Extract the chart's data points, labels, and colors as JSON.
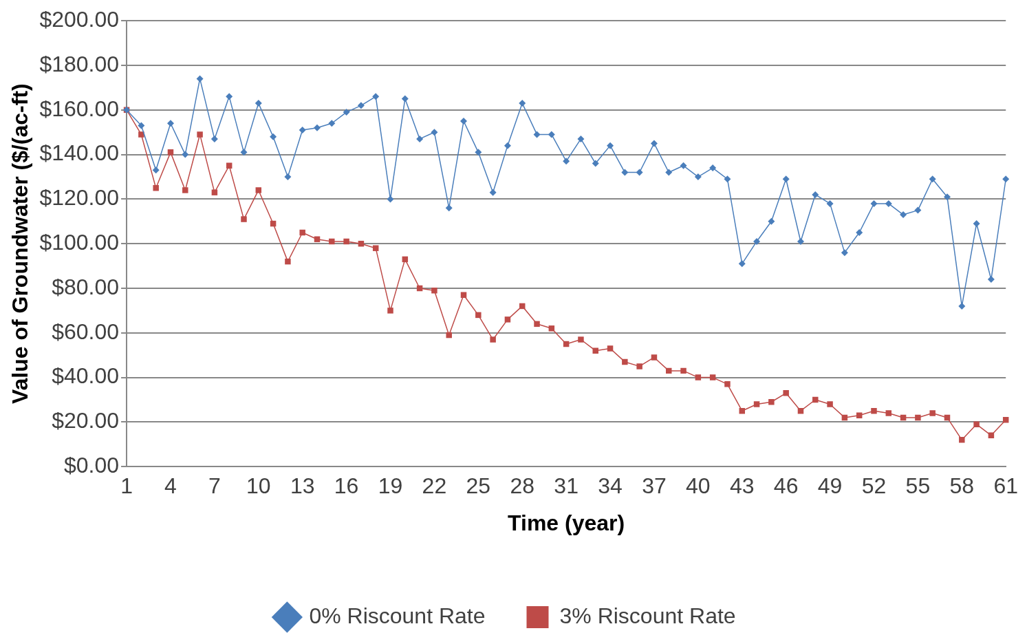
{
  "chart_data": {
    "type": "line",
    "xlabel": "Time (year)",
    "ylabel": "Value of Groundwater ($/(ac-ft)",
    "categories": [
      "1",
      null,
      null,
      "4",
      null,
      null,
      "7",
      null,
      null,
      "10",
      null,
      null,
      "13",
      null,
      null,
      "16",
      null,
      null,
      "19",
      null,
      null,
      "22",
      null,
      null,
      "25",
      null,
      null,
      "28",
      null,
      null,
      "31",
      null,
      null,
      "34",
      null,
      null,
      "37",
      null,
      null,
      "40",
      null,
      null,
      "43",
      null,
      null,
      "46",
      null,
      null,
      "49",
      null,
      null,
      "52",
      null,
      null,
      "55",
      null,
      null,
      "58",
      null,
      null,
      "61"
    ],
    "series": [
      {
        "name": "0% Riscount Rate",
        "color": "#4a7ebb",
        "marker": "diamond",
        "values": [
          160,
          153,
          133,
          154,
          140,
          174,
          147,
          166,
          141,
          163,
          148,
          130,
          151,
          152,
          154,
          159,
          162,
          166,
          120,
          165,
          147,
          150,
          116,
          155,
          141,
          123,
          144,
          163,
          149,
          149,
          137,
          147,
          136,
          144,
          132,
          132,
          145,
          132,
          135,
          130,
          134,
          129,
          91,
          101,
          110,
          129,
          101,
          122,
          118,
          96,
          105,
          118,
          118,
          113,
          115,
          129,
          121,
          72,
          109,
          84,
          129
        ]
      },
      {
        "name": "3% Riscount Rate",
        "color": "#be4b48",
        "marker": "square",
        "values": [
          160,
          149,
          125,
          141,
          124,
          149,
          123,
          135,
          111,
          124,
          109,
          92,
          105,
          102,
          101,
          101,
          100,
          98,
          70,
          93,
          80,
          79,
          59,
          77,
          68,
          57,
          66,
          72,
          64,
          62,
          55,
          57,
          52,
          53,
          47,
          45,
          49,
          43,
          43,
          40,
          40,
          37,
          25,
          28,
          29,
          33,
          25,
          30,
          28,
          22,
          23,
          25,
          24,
          22,
          22,
          24,
          22,
          12,
          19,
          14,
          21
        ]
      }
    ],
    "ylim": [
      0,
      200
    ],
    "yticks": [
      {
        "value": 0,
        "label": "$0.00"
      },
      {
        "value": 20,
        "label": "$20.00"
      },
      {
        "value": 40,
        "label": "$40.00"
      },
      {
        "value": 60,
        "label": "$60.00"
      },
      {
        "value": 80,
        "label": "$80.00"
      },
      {
        "value": 100,
        "label": "$100.00"
      },
      {
        "value": 120,
        "label": "$120.00"
      },
      {
        "value": 140,
        "label": "$140.00"
      },
      {
        "value": 160,
        "label": "$160.00"
      },
      {
        "value": 180,
        "label": "$180.00"
      },
      {
        "value": 200,
        "label": "$200.00"
      }
    ],
    "grid": "y",
    "legend": "bottom",
    "line_style": "solid"
  }
}
